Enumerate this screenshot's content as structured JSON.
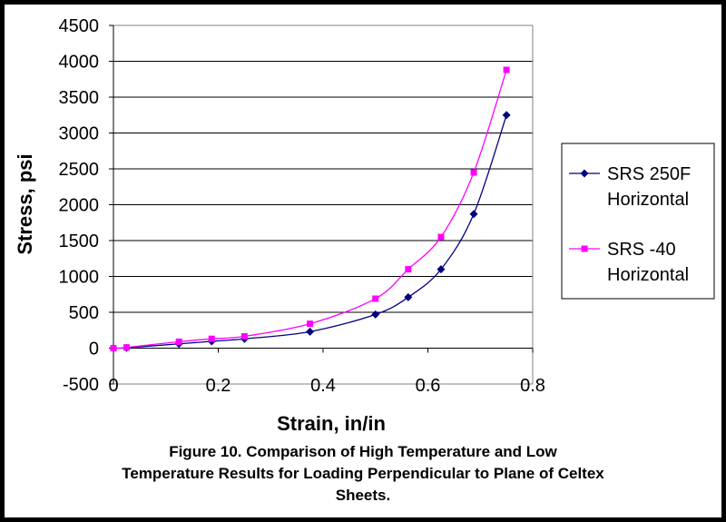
{
  "chart_data": {
    "type": "line",
    "title": "",
    "xlabel": "Strain, in/in",
    "ylabel": "Stress, psi",
    "xlim": [
      0,
      0.8
    ],
    "ylim": [
      -500,
      4500
    ],
    "x_ticks": [
      0,
      0.2,
      0.4,
      0.6,
      0.8
    ],
    "x_tick_labels": [
      "0",
      "0.2",
      "0.4",
      "0.6",
      "0.8"
    ],
    "y_ticks": [
      -500,
      0,
      500,
      1000,
      1500,
      2000,
      2500,
      3000,
      3500,
      4000,
      4500
    ],
    "y_tick_labels": [
      "-500",
      "0",
      "500",
      "1000",
      "1500",
      "2000",
      "2500",
      "3000",
      "3500",
      "4000",
      "4500"
    ],
    "grid": "horizontal",
    "legend_position": "right",
    "series": [
      {
        "name": "SRS 250F Horizontal",
        "legend_lines": [
          "SRS 250F",
          "Horizontal"
        ],
        "color": "#000080",
        "marker": "diamond",
        "x": [
          0,
          0.025,
          0.125,
          0.1875,
          0.25,
          0.375,
          0.5,
          0.5625,
          0.625,
          0.6875,
          0.75
        ],
        "y": [
          0,
          5,
          60,
          95,
          130,
          230,
          470,
          710,
          1100,
          1870,
          3250
        ]
      },
      {
        "name": "SRS -40 Horizontal",
        "legend_lines": [
          "SRS -40",
          "Horizontal"
        ],
        "color": "#ff00ff",
        "marker": "square",
        "x": [
          0,
          0.025,
          0.125,
          0.1875,
          0.25,
          0.375,
          0.5,
          0.5625,
          0.625,
          0.6875,
          0.75
        ],
        "y": [
          0,
          10,
          90,
          130,
          165,
          340,
          690,
          1100,
          1550,
          2450,
          3880
        ]
      }
    ]
  },
  "caption": {
    "lines": [
      "Figure 10.  Comparison of High Temperature and Low",
      "Temperature Results for Loading Perpendicular to Plane of Celtex",
      "Sheets."
    ]
  }
}
